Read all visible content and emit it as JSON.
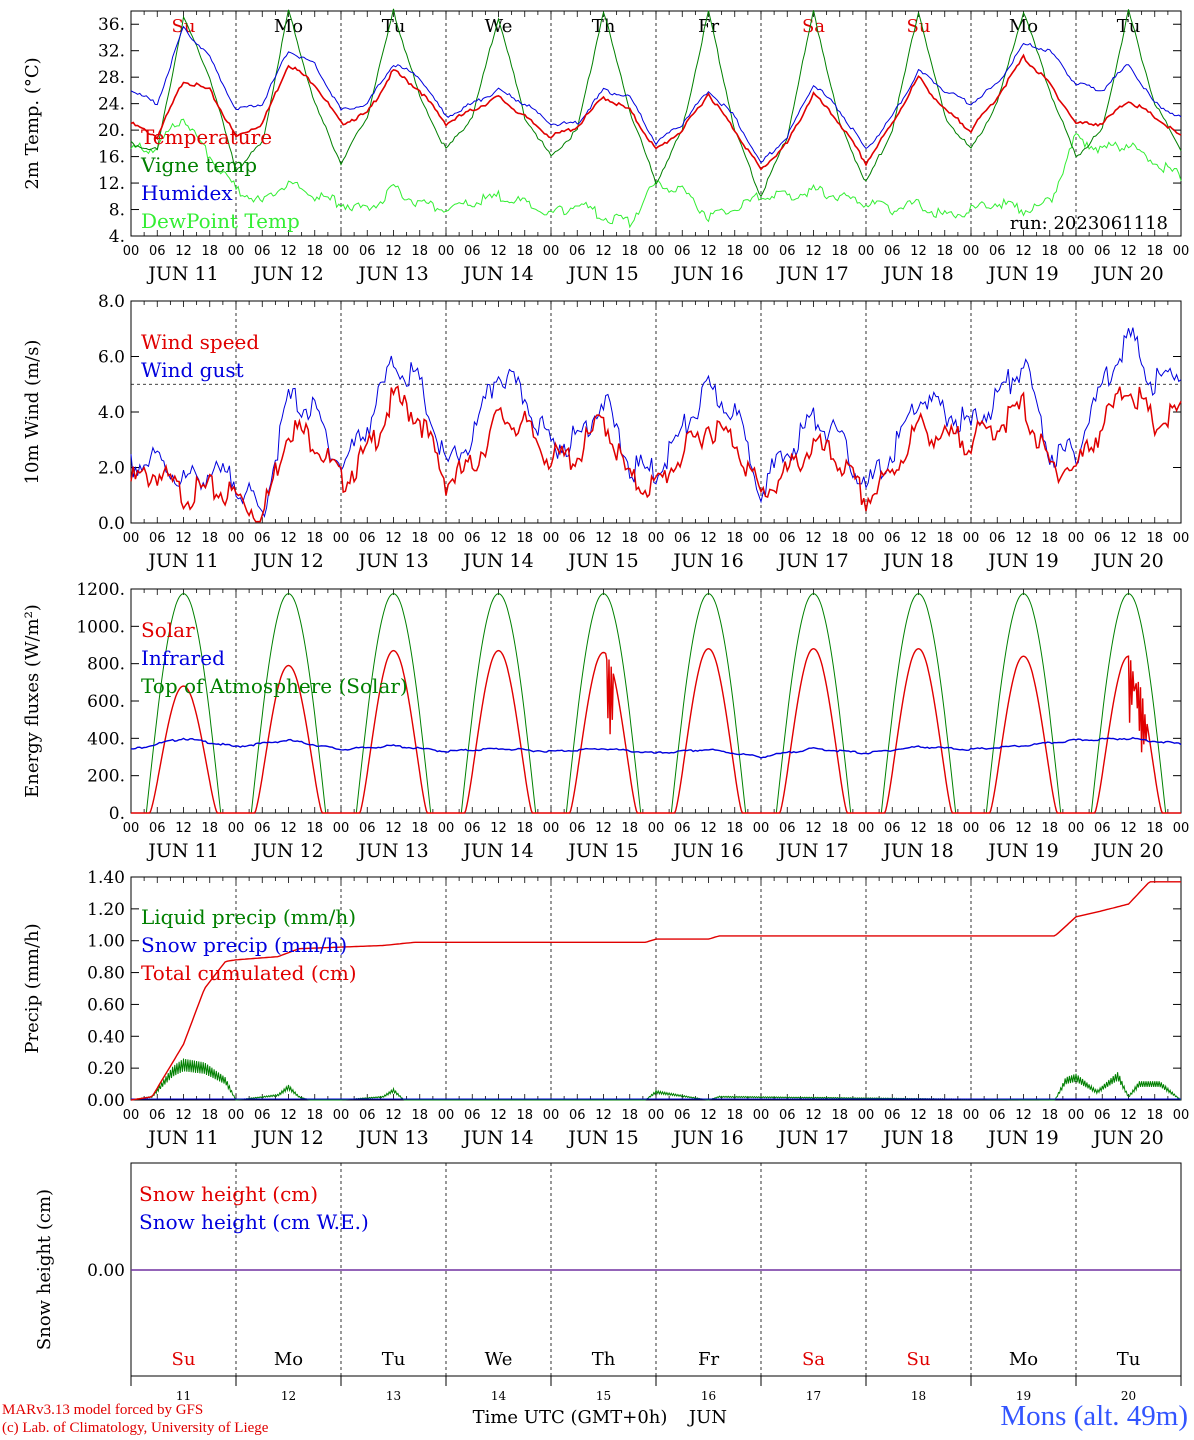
{
  "run_label": "run: 2023061118",
  "hour_ticks": [
    "00",
    "06",
    "12",
    "18"
  ],
  "date_labels": [
    "JUN 11",
    "JUN 12",
    "JUN 13",
    "JUN 14",
    "JUN 15",
    "JUN 16",
    "JUN 17",
    "JUN 18",
    "JUN 19",
    "JUN 20"
  ],
  "weekdays": [
    "Su",
    "Mo",
    "Tu",
    "We",
    "Th",
    "Fr",
    "Sa",
    "Su",
    "Mo",
    "Tu"
  ],
  "weekday_colors": [
    "#e00000",
    "#000000",
    "#000000",
    "#000000",
    "#000000",
    "#000000",
    "#e00000",
    "#e00000",
    "#000000",
    "#000000"
  ],
  "day_numbers": [
    "11",
    "12",
    "13",
    "14",
    "15",
    "16",
    "17",
    "18",
    "19",
    "20"
  ],
  "bottom_axis": {
    "label": "Time UTC (GMT+0h)",
    "month": "JUN"
  },
  "footer": {
    "credit_line1": "MARv3.13 model forced by GFS",
    "credit_line2": "(c) Lab. of Climatology, University of Liege",
    "station": "Mons (alt. 49m)"
  },
  "colors": {
    "red": "#e00000",
    "blue": "#0000dd",
    "green": "#008000",
    "light_green": "#33ee33",
    "purple": "#7030a0",
    "station": "#3355ff"
  },
  "chart_data": [
    {
      "type": "line",
      "ylabel": "2m Temp. (°C)",
      "ylim": [
        4,
        38
      ],
      "yticks": [
        "4.",
        "8.",
        "12.",
        "16.",
        "20.",
        "24.",
        "28.",
        "32.",
        "36."
      ],
      "x_unit": "days since JUN 11 00 UTC",
      "x": [
        0,
        0.25,
        0.5,
        0.75,
        1,
        1.25,
        1.5,
        1.75,
        2,
        2.25,
        2.5,
        2.75,
        3,
        3.25,
        3.5,
        3.75,
        4,
        4.25,
        4.5,
        4.75,
        5,
        5.25,
        5.5,
        5.75,
        6,
        6.25,
        6.5,
        6.75,
        7,
        7.25,
        7.5,
        7.75,
        8,
        8.25,
        8.5,
        8.75,
        9,
        9.25,
        9.5,
        9.75,
        10
      ],
      "series": [
        {
          "name": "Temperature",
          "color": "#e00000",
          "values": [
            21,
            19,
            27.5,
            26,
            19,
            21,
            30,
            27,
            21,
            22.5,
            29,
            26,
            21,
            23,
            25,
            22,
            19,
            20.5,
            25,
            23,
            17,
            20,
            25.5,
            20,
            14,
            18,
            25.5,
            21,
            15,
            21,
            28,
            23,
            20,
            25,
            31,
            27,
            21,
            21,
            24.5,
            22,
            19
          ]
        },
        {
          "name": "Vigne temp",
          "color": "#008000",
          "values": [
            18,
            17,
            37,
            28,
            14,
            18,
            38,
            24,
            15,
            22,
            38,
            25,
            17,
            22,
            37,
            22,
            16,
            20,
            38,
            23,
            12,
            20,
            38,
            20,
            10,
            19,
            38,
            21,
            12,
            20,
            38,
            22,
            17,
            24,
            38,
            26,
            16,
            20,
            38,
            24,
            17
          ]
        },
        {
          "name": "Humidex",
          "color": "#0000dd",
          "values": [
            26,
            24,
            35.5,
            31,
            23,
            24,
            32,
            30,
            23,
            24,
            30,
            28,
            22,
            24,
            26,
            24,
            21,
            21,
            26,
            25,
            18,
            21,
            26,
            22,
            15,
            19,
            27,
            23,
            17,
            22,
            29,
            26,
            24,
            27,
            33,
            32,
            27,
            26,
            30,
            24,
            22
          ]
        },
        {
          "name": "DewPoint Temp",
          "color": "#33ee33",
          "values": [
            17,
            17.5,
            22,
            16,
            11,
            9,
            12,
            10,
            9,
            8,
            11,
            9,
            8,
            9,
            10,
            9,
            7,
            9,
            7,
            6,
            12,
            11,
            7,
            8,
            10,
            10,
            11,
            10,
            9,
            8,
            9,
            7,
            8,
            9,
            8,
            9,
            19,
            17,
            18,
            15,
            13
          ]
        }
      ]
    },
    {
      "type": "line",
      "ylabel": "10m Wind (m/s)",
      "ylim": [
        0,
        8
      ],
      "yticks": [
        "0.0",
        "2.0",
        "4.0",
        "6.0",
        "8.0"
      ],
      "reference_line": 5,
      "x_unit": "days since JUN 11 00 UTC",
      "x": [
        0,
        0.25,
        0.5,
        0.75,
        1,
        1.25,
        1.5,
        1.75,
        2,
        2.25,
        2.5,
        2.75,
        3,
        3.25,
        3.5,
        3.75,
        4,
        4.25,
        4.5,
        4.75,
        5,
        5.25,
        5.5,
        5.75,
        6,
        6.25,
        6.5,
        6.75,
        7,
        7.25,
        7.5,
        7.75,
        8,
        8.25,
        8.5,
        8.75,
        9,
        9.25,
        9.5,
        9.75,
        10
      ],
      "series": [
        {
          "name": "Wind speed",
          "color": "#e00000",
          "values": [
            1.5,
            1.8,
            1.0,
            1.2,
            1.0,
            0.2,
            3.5,
            3.0,
            1.5,
            2.5,
            4.5,
            3.8,
            1.5,
            2.0,
            3.8,
            3.5,
            2.3,
            2.4,
            3.8,
            1.5,
            1.3,
            2.5,
            3.5,
            3.0,
            1.0,
            1.8,
            2.8,
            2.2,
            0.8,
            1.8,
            3.5,
            3.0,
            3.0,
            3.5,
            4.2,
            2.0,
            2.0,
            3.5,
            5.0,
            3.5,
            4.0
          ]
        },
        {
          "name": "Wind gust",
          "color": "#0000dd",
          "values": [
            2.0,
            2.3,
            1.5,
            1.8,
            1.5,
            0.3,
            4.5,
            4.0,
            2.0,
            3.5,
            5.8,
            5.0,
            2.0,
            3.0,
            5.5,
            4.5,
            2.8,
            3.0,
            4.5,
            2.0,
            1.8,
            3.3,
            4.8,
            4.0,
            1.3,
            2.5,
            3.8,
            3.0,
            1.2,
            2.5,
            4.5,
            4.0,
            3.5,
            4.5,
            5.8,
            2.5,
            2.5,
            5.0,
            6.8,
            5.0,
            5.5
          ]
        }
      ]
    },
    {
      "type": "line",
      "ylabel": "Energy fluxes (W/m²)",
      "ylim": [
        0,
        1200
      ],
      "yticks": [
        "0.",
        "200.",
        "400.",
        "600.",
        "800.",
        "1000.",
        "1200."
      ],
      "x_unit": "days since JUN 11 00 UTC",
      "daily_peak_solar": [
        680,
        790,
        870,
        870,
        860,
        880,
        880,
        880,
        840,
        840
      ],
      "daily_peak_toa": 1175,
      "series": [
        {
          "name": "Solar",
          "color": "#e00000",
          "values_note": "daily peaks in daily_peak_solar"
        },
        {
          "name": "Infrared",
          "color": "#0000dd",
          "x": [
            0,
            0.5,
            1,
            1.5,
            2,
            2.5,
            3,
            3.5,
            4,
            4.5,
            5,
            5.5,
            6,
            6.5,
            7,
            7.5,
            8,
            8.5,
            9,
            9.5,
            10
          ],
          "values": [
            340,
            400,
            355,
            390,
            340,
            360,
            330,
            345,
            330,
            345,
            320,
            340,
            300,
            345,
            320,
            355,
            340,
            360,
            390,
            400,
            370
          ]
        },
        {
          "name": "Top of Atmosphere (Solar)",
          "color": "#008000",
          "values_note": "daily peak daily_peak_toa"
        }
      ]
    },
    {
      "type": "line",
      "ylabel": "Precip (mm/h)",
      "ylim": [
        0,
        1.4
      ],
      "yticks": [
        "0.00",
        "0.20",
        "0.40",
        "0.60",
        "0.80",
        "1.00",
        "1.20",
        "1.40"
      ],
      "x_unit": "days since JUN 11 00 UTC",
      "series": [
        {
          "name": "Liquid precip (mm/h)",
          "color": "#008000",
          "x": [
            0,
            0.2,
            0.4,
            0.5,
            0.7,
            0.9,
            1.0,
            1.4,
            1.5,
            1.6,
            1.7,
            2.0,
            2.4,
            2.5,
            2.6,
            4.9,
            5.0,
            5.5,
            5.6,
            8.8,
            8.9,
            9.0,
            9.2,
            9.4,
            9.5,
            9.6,
            9.8,
            10
          ],
          "values": [
            0,
            0.02,
            0.18,
            0.22,
            0.2,
            0.12,
            0.0,
            0.03,
            0.08,
            0.02,
            0.0,
            0.0,
            0.02,
            0.06,
            0.0,
            0.0,
            0.05,
            0.0,
            0.02,
            0.0,
            0.12,
            0.14,
            0.05,
            0.15,
            0.02,
            0.1,
            0.1,
            0
          ]
        },
        {
          "name": "Snow precip (mm/h)",
          "color": "#0000dd",
          "values_note": "zero"
        },
        {
          "name": "Total cumulated (cm)",
          "color": "#e00000",
          "x": [
            0,
            0.2,
            0.5,
            0.7,
            0.9,
            1.0,
            1.4,
            1.6,
            2.4,
            2.7,
            3,
            4,
            4.9,
            5.0,
            5.5,
            5.6,
            6,
            7,
            8,
            8.8,
            9.0,
            9.2,
            9.5,
            9.7,
            10
          ],
          "values": [
            0,
            0.02,
            0.35,
            0.7,
            0.87,
            0.88,
            0.9,
            0.95,
            0.97,
            0.99,
            0.99,
            0.99,
            0.99,
            1.01,
            1.01,
            1.03,
            1.03,
            1.03,
            1.03,
            1.03,
            1.15,
            1.18,
            1.23,
            1.37,
            1.37
          ]
        }
      ]
    },
    {
      "type": "line",
      "ylabel": "Snow height (cm)",
      "yticks": [
        "0.00"
      ],
      "x_unit": "days since JUN 11 00 UTC",
      "series": [
        {
          "name": "Snow height (cm)",
          "color": "#e00000",
          "values": [
            0,
            0
          ]
        },
        {
          "name": "Snow height (cm W.E.)",
          "color": "#0000dd",
          "values": [
            0,
            0
          ]
        }
      ]
    }
  ]
}
